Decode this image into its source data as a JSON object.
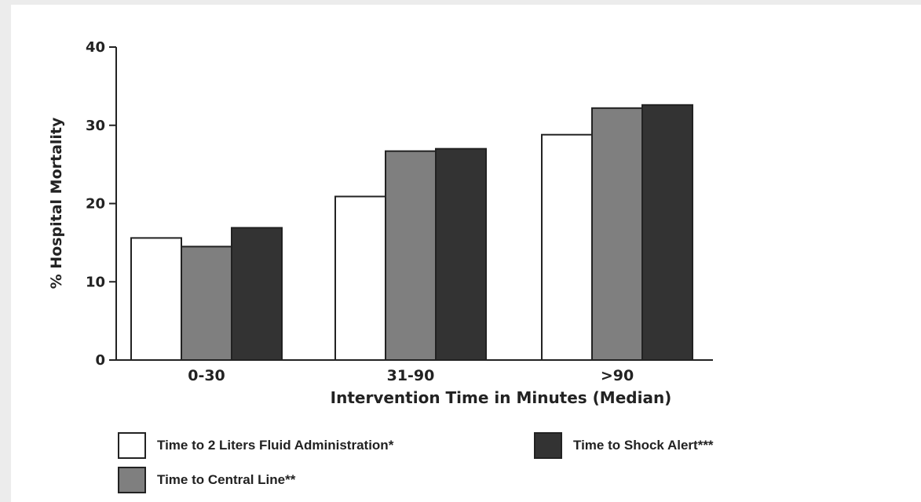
{
  "chart_data": {
    "type": "bar",
    "categories": [
      "0-30",
      "31-90",
      ">90"
    ],
    "series": [
      {
        "name": "Time to 2 Liters Fluid Administration*",
        "values": [
          15.6,
          20.9,
          28.8
        ],
        "color": "#ffffff"
      },
      {
        "name": "Time to Central Line**",
        "values": [
          14.5,
          26.7,
          32.2
        ],
        "color": "#7f7f7f"
      },
      {
        "name": "Time to Shock Alert***",
        "values": [
          16.9,
          27.0,
          32.6
        ],
        "color": "#333333"
      }
    ],
    "xlabel": "Intervention Time in Minutes (Median)",
    "ylabel": "% Hospital Mortality",
    "ylim": [
      0,
      40
    ],
    "yticks": [
      0,
      10,
      20,
      30,
      40
    ],
    "grid": false,
    "legend_position": "bottom"
  }
}
